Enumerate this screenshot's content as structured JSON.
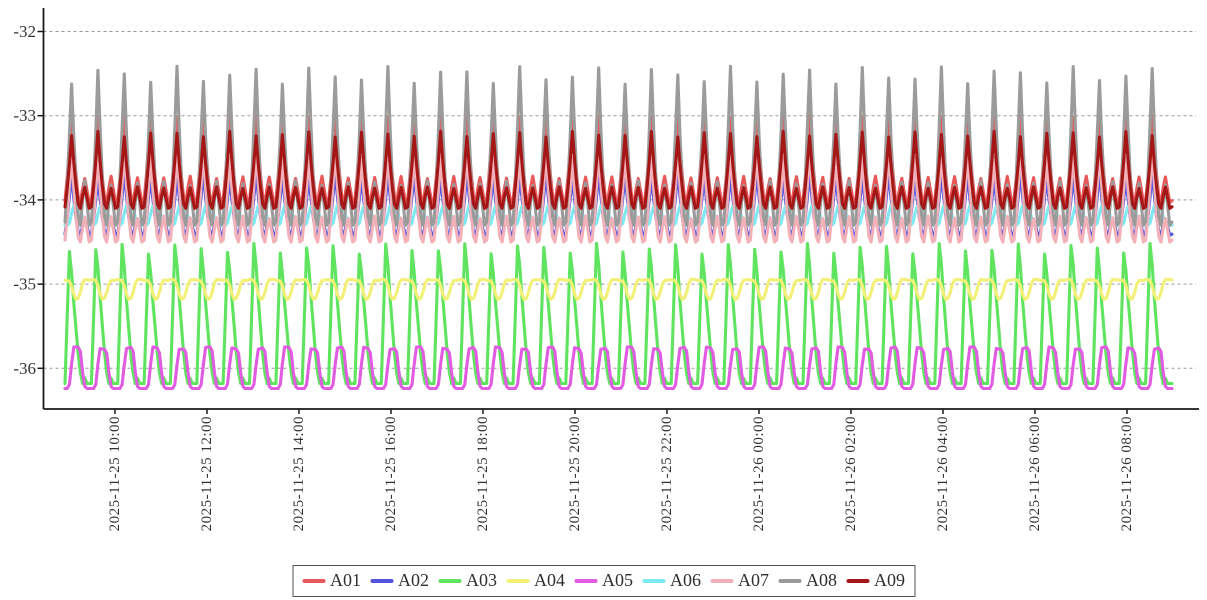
{
  "chart_data": {
    "type": "line",
    "title": "",
    "xlabel": "",
    "ylabel": "",
    "grid": true,
    "legend_position": "bottom",
    "x_axis": {
      "tick_labels": [
        "2025-11-25 10:00",
        "2025-11-25 12:00",
        "2025-11-25 14:00",
        "2025-11-25 16:00",
        "2025-11-25 18:00",
        "2025-11-25 20:00",
        "2025-11-25 22:00",
        "2025-11-26 00:00",
        "2025-11-26 02:00",
        "2025-11-26 04:00",
        "2025-11-26 06:00",
        "2025-11-26 08:00"
      ],
      "tick_interval_hours": 2
    },
    "y_axis": {
      "tick_labels": [
        "-32",
        "-33",
        "-34",
        "-35",
        "-36"
      ],
      "tick_values": [
        -32,
        -33,
        -34,
        -35,
        -36
      ],
      "range": [
        -36.5,
        -31.7
      ]
    },
    "colors": {
      "axis": "#1a1a1a",
      "gridline": "#9a9a9a",
      "tick_text": "#333333"
    },
    "oscillation": {
      "cycles_shown": 42,
      "approx_period_minutes": 34,
      "samples_per_cycle": 12
    },
    "wave_templates": {
      "peaky": [
        0.02,
        0.28,
        0.62,
        1.0,
        0.62,
        0.3,
        0.06,
        0.0,
        0.16,
        0.28,
        0.14,
        0.0
      ],
      "bigtri": [
        0.0,
        0.5,
        1.0,
        0.85,
        0.62,
        0.42,
        0.22,
        0.08,
        0.0,
        0.04,
        0.0,
        0.0
      ],
      "flattop": [
        1.0,
        1.0,
        0.95,
        0.7,
        0.25,
        0.0,
        0.05,
        0.35,
        0.8,
        1.0,
        1.0,
        1.0
      ],
      "square": [
        0.0,
        0.0,
        0.1,
        0.6,
        1.0,
        1.0,
        1.0,
        0.9,
        0.4,
        0.05,
        0.0,
        0.0
      ]
    },
    "series": [
      {
        "name": "A01",
        "color": "#e85858",
        "peak": -32.97,
        "trough": -34.03,
        "shape": "peaky",
        "jitter": 0.05
      },
      {
        "name": "A02",
        "color": "#5353dc",
        "peak": -33.7,
        "trough": -34.42,
        "shape": "peaky",
        "jitter": 0.05
      },
      {
        "name": "A03",
        "color": "#60e460",
        "peak": -34.58,
        "trough": -36.18,
        "shape": "bigtri",
        "jitter": 0.04
      },
      {
        "name": "A04",
        "color": "#f3f077",
        "peak": -34.95,
        "trough": -35.18,
        "shape": "flattop",
        "jitter": 0.03
      },
      {
        "name": "A05",
        "color": "#e05ce0",
        "peak": -35.76,
        "trough": -36.24,
        "shape": "square",
        "jitter": 0.03
      },
      {
        "name": "A06",
        "color": "#7ee9f0",
        "peak": -34.07,
        "trough": -34.3,
        "shape": "square",
        "jitter": 0.03
      },
      {
        "name": "A07",
        "color": "#f2b1b8",
        "peak": -33.45,
        "trough": -34.5,
        "shape": "peaky",
        "jitter": 0.05
      },
      {
        "name": "A08",
        "color": "#9b9b9b",
        "peak": -32.52,
        "trough": -34.3,
        "shape": "peaky",
        "jitter": 0.06
      },
      {
        "name": "A09",
        "color": "#a51717",
        "peak": -33.22,
        "trough": -34.1,
        "shape": "peaky",
        "jitter": 0.04
      }
    ],
    "legend_labels": [
      "A01",
      "A02",
      "A03",
      "A04",
      "A05",
      "A06",
      "A07",
      "A08",
      "A09"
    ]
  }
}
